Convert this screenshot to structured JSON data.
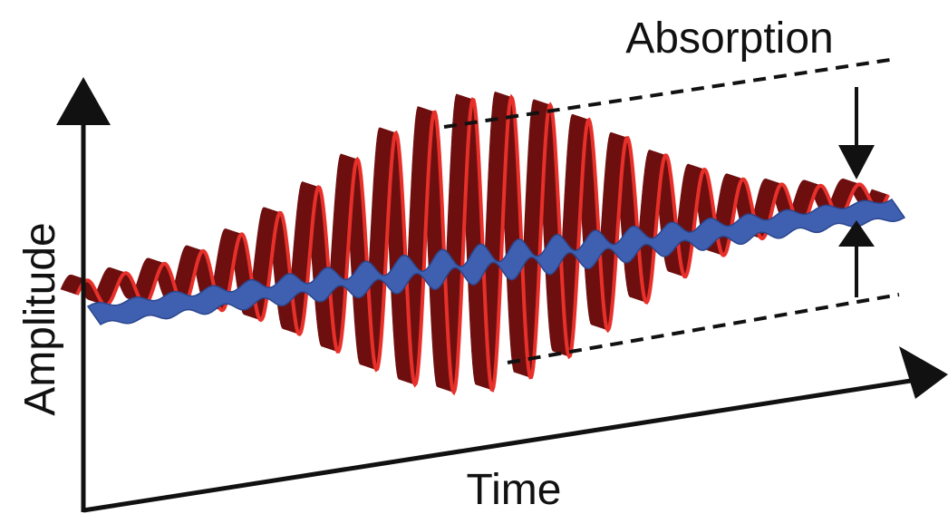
{
  "labels": {
    "absorption": "Absorption",
    "amplitude": "Amplitude",
    "time": "Time"
  }
}
